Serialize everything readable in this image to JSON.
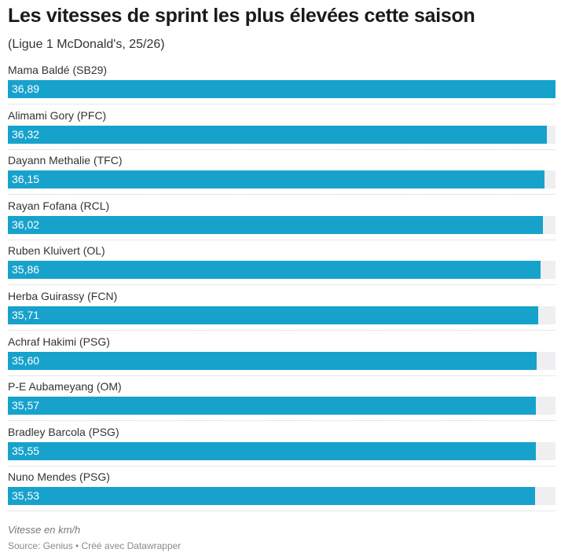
{
  "chart_data": {
    "type": "bar",
    "orientation": "horizontal",
    "title": "Les vitesses de sprint les plus élevées cette saison",
    "subtitle": "(Ligue 1 McDonald's, 25/26)",
    "categories": [
      "Mama Baldé (SB29)",
      "Alimami Gory (PFC)",
      "Dayann Methalie (TFC)",
      "Rayan Fofana (RCL)",
      "Ruben Kluivert (OL)",
      "Herba Guirassy (FCN)",
      "Achraf Hakimi (PSG)",
      "P-E Aubameyang (OM)",
      "Bradley Barcola (PSG)",
      "Nuno Mendes (PSG)"
    ],
    "values": [
      36.89,
      36.32,
      36.15,
      36.02,
      35.86,
      35.71,
      35.6,
      35.57,
      35.55,
      35.53
    ],
    "value_labels": [
      "36,89",
      "36,32",
      "36,15",
      "36,02",
      "35,86",
      "35,71",
      "35,60",
      "35,57",
      "35,55",
      "35,53"
    ],
    "xlim": [
      0,
      36.89
    ],
    "color": "#17a2cc",
    "notes": "Vitesse en km/h",
    "source": "Source: Genius • Créé avec Datawrapper"
  }
}
